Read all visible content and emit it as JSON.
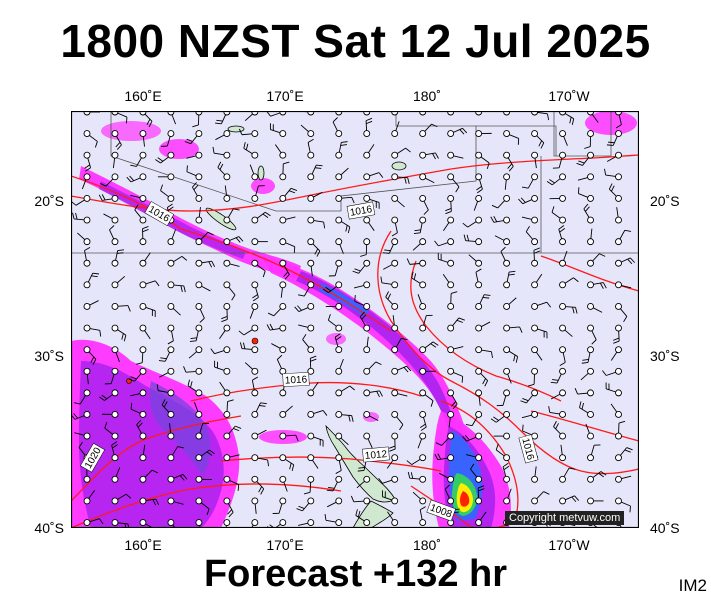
{
  "header": {
    "title": "1800 NZST Sat 12 Jul 2025"
  },
  "footer": {
    "forecast": "Forecast +132 hr",
    "code": "IM2"
  },
  "map": {
    "copyright": "Copyright metvuw.com",
    "lon_labels": [
      "160˚E",
      "170˚E",
      "180˚",
      "170˚W"
    ],
    "lat_labels": [
      "20˚S",
      "30˚S",
      "40˚S"
    ],
    "isobar_labels": [
      "1016",
      "1016",
      "1016",
      "1016",
      "1012",
      "1020",
      "1008"
    ],
    "colors": {
      "background": "#e6e6fa",
      "isobar": "#ff1a1a",
      "rain_light": "#ff33ff",
      "rain_mid": "#aa22ee",
      "rain_heavy": "#3366ff",
      "rain_extreme": "#ff2200",
      "land": "#cfe8cf"
    }
  }
}
